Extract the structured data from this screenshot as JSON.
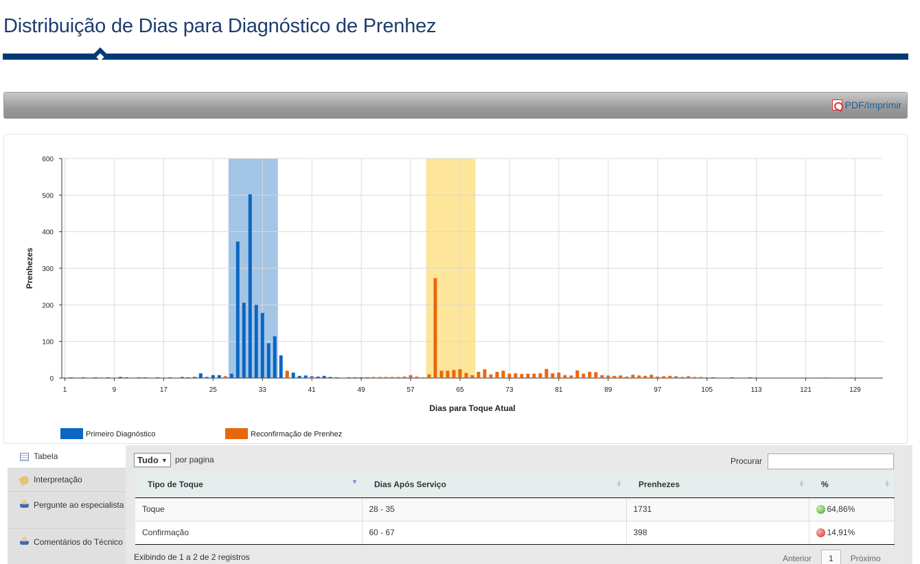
{
  "page": {
    "title": "Distribuição de Dias para Diagnóstico de Prenhez"
  },
  "toolbar": {
    "pdf_label": "PDF/Imprimir"
  },
  "chart_data": {
    "type": "bar",
    "title": "",
    "xlabel": "Dias para Toque Atual",
    "ylabel": "Prenhezes",
    "ylim": [
      0,
      600
    ],
    "yticks": [
      0,
      100,
      200,
      300,
      400,
      500,
      600
    ],
    "xlim": [
      1,
      133
    ],
    "xticks": [
      1,
      9,
      17,
      25,
      33,
      41,
      49,
      57,
      65,
      73,
      81,
      89,
      97,
      105,
      113,
      121,
      129
    ],
    "grid": true,
    "legend_position": "bottom-left",
    "bands": [
      {
        "series": "Primeiro Diagnóstico",
        "from": 28,
        "to": 35,
        "color": "#a3c5e6"
      },
      {
        "series": "Reconfirmação de Prenhez",
        "from": 60,
        "to": 67,
        "color": "#fde59a"
      }
    ],
    "series": [
      {
        "name": "Primeiro Diagnóstico",
        "color": "#0a66c2",
        "x": [
          2,
          4,
          6,
          8,
          10,
          11,
          13,
          14,
          16,
          18,
          20,
          21,
          22,
          23,
          24,
          25,
          26,
          27,
          28,
          29,
          30,
          31,
          32,
          33,
          34,
          35,
          36,
          37,
          38,
          39,
          40,
          41,
          42,
          43,
          44,
          45,
          47,
          48,
          49,
          50,
          52,
          54,
          58,
          60,
          106,
          109,
          112
        ],
        "y": [
          2,
          2,
          2,
          2,
          3,
          2,
          2,
          2,
          2,
          2,
          3,
          2,
          3,
          13,
          3,
          8,
          8,
          4,
          12,
          373,
          206,
          502,
          200,
          178,
          95,
          114,
          62,
          17,
          15,
          6,
          7,
          5,
          4,
          6,
          3,
          2,
          2,
          2,
          2,
          2,
          2,
          2,
          2,
          2,
          2,
          2,
          2
        ]
      },
      {
        "name": "Reconfirmação de Prenhez",
        "color": "#e8670c",
        "x": [
          27,
          37,
          41,
          51,
          52,
          53,
          54,
          55,
          56,
          57,
          58,
          59,
          60,
          61,
          62,
          63,
          64,
          65,
          66,
          67,
          68,
          69,
          70,
          71,
          72,
          73,
          74,
          75,
          76,
          77,
          78,
          79,
          80,
          81,
          82,
          83,
          84,
          85,
          86,
          87,
          88,
          89,
          90,
          91,
          92,
          93,
          94,
          95,
          96,
          97,
          98,
          99,
          100,
          101,
          102,
          103,
          104,
          105,
          113,
          124
        ],
        "y": [
          5,
          20,
          3,
          3,
          3,
          3,
          3,
          3,
          4,
          8,
          4,
          2,
          10,
          273,
          20,
          20,
          22,
          24,
          14,
          8,
          17,
          24,
          10,
          17,
          20,
          12,
          13,
          11,
          12,
          12,
          13,
          25,
          13,
          15,
          8,
          7,
          21,
          12,
          17,
          16,
          8,
          7,
          6,
          7,
          4,
          9,
          7,
          6,
          9,
          4,
          5,
          6,
          5,
          3,
          5,
          3,
          3,
          2,
          2,
          2
        ]
      }
    ]
  },
  "tabs": [
    {
      "label": "Tabela",
      "icon": "table-icon"
    },
    {
      "label": "Interpretação",
      "icon": "tag-icon"
    },
    {
      "label": "Pergunte ao especialista",
      "icon": "specialist-icon"
    },
    {
      "label": "Comentários do Técnico",
      "icon": "technician-icon"
    }
  ],
  "table": {
    "length_value": "Tudo",
    "length_suffix": "por pagina",
    "search_label": "Procurar",
    "search_value": "",
    "columns": [
      "Tipo de Toque",
      "Dias Após Serviço",
      "Prenhezes",
      "%"
    ],
    "rows": [
      {
        "tipo": "Toque",
        "dias": "28 - 35",
        "prenhezes": "1731",
        "pct": "64,86%",
        "status": "green"
      },
      {
        "tipo": "Confirmação",
        "dias": "60 - 67",
        "prenhezes": "398",
        "pct": "14,91%",
        "status": "red"
      }
    ],
    "info": "Exibindo de 1 a 2 de 2 registros",
    "pager": {
      "prev": "Anterior",
      "page": "1",
      "next": "Próximo"
    }
  }
}
